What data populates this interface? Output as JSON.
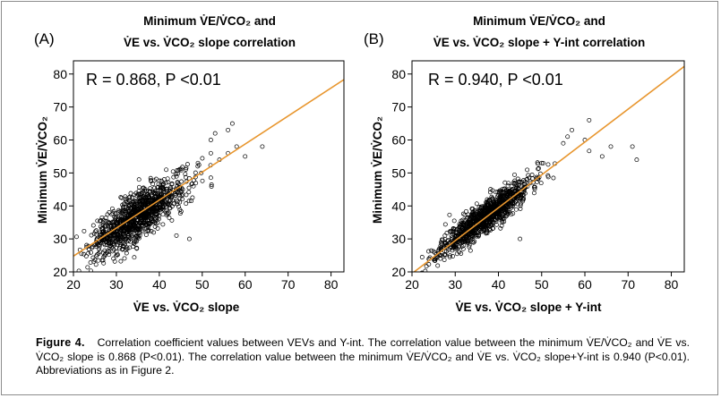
{
  "caption": {
    "label": "Figure 4.",
    "text": "Correlation coefficient values between VEVs and Y-int. The correlation value between the minimum V̇E/V̇CO₂ and V̇E vs. V̇CO₂ slope is 0.868 (P<0.01). The correlation value between the minimum V̇E/V̇CO₂ and V̇E vs. V̇CO₂ slope+Y-int is 0.940 (P<0.01). Abbreviations as in Figure 2."
  },
  "colors": {
    "fit_line": "#e8962e",
    "points": "#000000",
    "frame": "#000000"
  },
  "chart_data": [
    {
      "type": "scatter",
      "panel_label": "(A)",
      "title_line1": "Minimum V̇E/V̇CO₂ and",
      "title_line2": "V̇E vs. V̇CO₂ slope correlation",
      "annotation": "R = 0.868, P <0.01",
      "xlabel": "V̇E vs. V̇CO₂ slope",
      "ylabel": "Minimum V̇E/V̇CO₂",
      "xlim": [
        20,
        83
      ],
      "ylim": [
        20,
        84
      ],
      "xticks": [
        "20",
        "30",
        "40",
        "50",
        "60",
        "70",
        "80"
      ],
      "yticks": [
        "20",
        "30",
        "40",
        "50",
        "60",
        "70",
        "80"
      ],
      "fit_line": {
        "x": [
          20,
          83
        ],
        "y": [
          24.8,
          78.3
        ]
      },
      "cloud": {
        "n": 1100,
        "center_x": 35,
        "center_y": 36.8,
        "spread_x": 5.5,
        "slope": 0.85,
        "residual_sd": 3.6,
        "seed": 7
      },
      "outliers": [
        [
          57,
          65
        ],
        [
          56,
          63
        ],
        [
          53,
          62
        ],
        [
          52,
          60
        ],
        [
          58,
          58
        ],
        [
          60,
          55
        ],
        [
          64,
          58
        ],
        [
          54,
          54
        ],
        [
          47,
          30
        ],
        [
          44,
          31
        ],
        [
          56,
          56
        ],
        [
          52,
          56
        ],
        [
          49,
          53
        ]
      ]
    },
    {
      "type": "scatter",
      "panel_label": "(B)",
      "title_line1": "Minimum V̇E/V̇CO₂ and",
      "title_line2": "V̇E vs. V̇CO₂ slope + Y-int correlation",
      "annotation": "R = 0.940, P <0.01",
      "xlabel": "V̇E vs. V̇CO₂ slope + Y-int",
      "ylabel": "Minimum V̇E/V̇CO₂",
      "xlim": [
        20,
        83
      ],
      "ylim": [
        20,
        84
      ],
      "xticks": [
        "20",
        "30",
        "40",
        "50",
        "60",
        "70",
        "80"
      ],
      "yticks": [
        "20",
        "30",
        "40",
        "50",
        "60",
        "70",
        "80"
      ],
      "fit_line": {
        "x": [
          20.5,
          83
        ],
        "y": [
          20,
          82.3
        ]
      },
      "cloud": {
        "n": 1100,
        "center_x": 37,
        "center_y": 36.8,
        "spread_x": 5.2,
        "slope": 0.98,
        "residual_sd": 2.3,
        "seed": 11
      },
      "outliers": [
        [
          57,
          63
        ],
        [
          61,
          66
        ],
        [
          60,
          60
        ],
        [
          71,
          58
        ],
        [
          72,
          54
        ],
        [
          66,
          58
        ],
        [
          64,
          55
        ],
        [
          56,
          61
        ],
        [
          55,
          59
        ],
        [
          45,
          30
        ],
        [
          50,
          53
        ]
      ]
    }
  ]
}
